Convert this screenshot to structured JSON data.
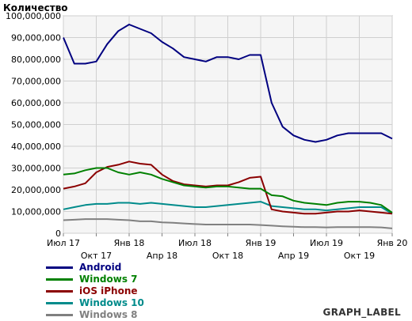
{
  "chart_data": {
    "type": "line",
    "title": "",
    "ylabel": "Количество",
    "xlabel": "",
    "ylim": [
      0,
      100000000
    ],
    "yticks": [
      0,
      10000000,
      20000000,
      30000000,
      40000000,
      50000000,
      60000000,
      70000000,
      80000000,
      90000000,
      100000000
    ],
    "ytick_labels": [
      "0",
      "10,000,000",
      "20,000,000",
      "30,000,000",
      "40,000,000",
      "50,000,000",
      "60,000,000",
      "70,000,000",
      "80,000,000",
      "90,000,000",
      "100,000,000"
    ],
    "xtick_labels": [
      "Июл 17",
      "Окт 17",
      "Янв 18",
      "Апр 18",
      "Июл 18",
      "Окт 18",
      "Янв 19",
      "Апр 19",
      "Июл 19",
      "Окт 19",
      "Янв 20"
    ],
    "xtick_rows": [
      0,
      1,
      0,
      1,
      0,
      1,
      0,
      1,
      0,
      1,
      0
    ],
    "x": [
      "2017-07",
      "2017-08",
      "2017-09",
      "2017-10",
      "2017-11",
      "2017-12",
      "2018-01",
      "2018-02",
      "2018-03",
      "2018-04",
      "2018-05",
      "2018-06",
      "2018-07",
      "2018-08",
      "2018-09",
      "2018-10",
      "2018-11",
      "2018-12",
      "2019-01",
      "2019-02",
      "2019-03",
      "2019-04",
      "2019-05",
      "2019-06",
      "2019-07",
      "2019-08",
      "2019-09",
      "2019-10",
      "2019-11",
      "2019-12",
      "2020-01"
    ],
    "grid": true,
    "legend_position": "bottom-left",
    "series": [
      {
        "name": "Android",
        "color": "#000080",
        "values": [
          90000000,
          78000000,
          78000000,
          79000000,
          87000000,
          93000000,
          96000000,
          94000000,
          92000000,
          88000000,
          85000000,
          81000000,
          80000000,
          79000000,
          81000000,
          81000000,
          80000000,
          82000000,
          82000000,
          60000000,
          49000000,
          45000000,
          43000000,
          42000000,
          43000000,
          45000000,
          46000000,
          46000000,
          46000000,
          46000000,
          43500000
        ]
      },
      {
        "name": "Windows 7",
        "color": "#008000",
        "values": [
          27000000,
          27500000,
          29000000,
          30000000,
          30000000,
          28000000,
          27000000,
          28000000,
          27000000,
          25000000,
          23500000,
          22000000,
          21500000,
          21000000,
          21500000,
          21500000,
          21000000,
          20500000,
          20500000,
          17500000,
          17000000,
          15000000,
          14000000,
          13500000,
          13000000,
          14000000,
          14500000,
          14500000,
          14000000,
          13000000,
          9500000
        ]
      },
      {
        "name": "iOS iPhone",
        "color": "#8b0000",
        "values": [
          20500000,
          21500000,
          23000000,
          28000000,
          30500000,
          31500000,
          33000000,
          32000000,
          31500000,
          27000000,
          24000000,
          22500000,
          22000000,
          21500000,
          22000000,
          22000000,
          23500000,
          25500000,
          26000000,
          11000000,
          10000000,
          9500000,
          9000000,
          9000000,
          9500000,
          10000000,
          10000000,
          10500000,
          10000000,
          9500000,
          9000000
        ]
      },
      {
        "name": "Windows 10",
        "color": "#008b8b",
        "values": [
          11000000,
          12000000,
          13000000,
          13500000,
          13500000,
          14000000,
          14000000,
          13500000,
          14000000,
          13500000,
          13000000,
          12500000,
          12000000,
          12000000,
          12500000,
          13000000,
          13500000,
          14000000,
          14500000,
          12500000,
          12000000,
          11500000,
          11000000,
          11000000,
          10500000,
          11000000,
          11500000,
          12000000,
          12000000,
          12000000,
          9000000
        ]
      },
      {
        "name": "Windows 8",
        "color": "#808080",
        "values": [
          6000000,
          6200000,
          6500000,
          6500000,
          6500000,
          6200000,
          6000000,
          5500000,
          5500000,
          5000000,
          4800000,
          4500000,
          4200000,
          4000000,
          4000000,
          4000000,
          4000000,
          4000000,
          3800000,
          3500000,
          3200000,
          3000000,
          2800000,
          2800000,
          2700000,
          2800000,
          2800000,
          2800000,
          2800000,
          2700000,
          2200000
        ]
      }
    ]
  },
  "footer": {
    "graph_label": "GRAPH_LABEL"
  }
}
